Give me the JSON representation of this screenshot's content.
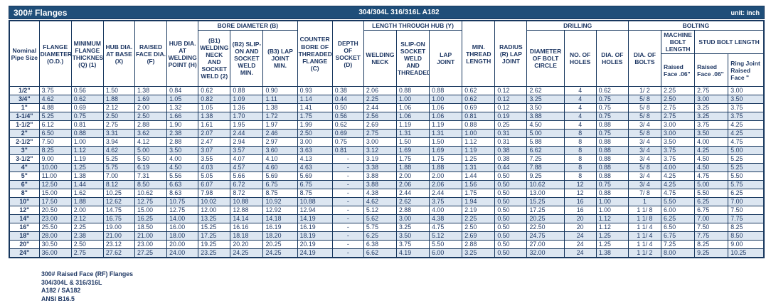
{
  "colors": {
    "title_bar_bg": "#1F4E79",
    "border": "#17375E",
    "alt_row_bg": "#DCE6F1",
    "text": "#1F3864"
  },
  "title_bar": {
    "title": "300# Flanges",
    "material": "304/304L 316/316L A182",
    "unit": "unit: inch"
  },
  "header": {
    "pipe_size": "Nominal Pipe Size",
    "flange_diameter": "FLANGE DIAMETER (O.D.)",
    "min_thickness": "MINIMUM FLANGE THICKNESS (Q) (1)",
    "hub_dia_base": "HUB DIA. AT BASE (X)",
    "raised_face_dia": "RAISED FACE DIA. (F)",
    "hub_dia_welding": "HUB DIA. AT WELDING POINT (H)",
    "bore_group": "BORE DIAMETER (B)",
    "b1": "(B1) WELDING NECK AND SOCKET WELD (2)",
    "b2": "(B2) SLIP-ON AND SOCKET WELD MIN.",
    "b3": "(B3) LAP JOINT MIN.",
    "counter_bore": "COUNTER BORE OF THREADED FLANGE (C)",
    "depth_socket": "DEPTH OF SOCKET (D)",
    "length_hub_group": "LENGTH THROUGH HUB (Y)",
    "welding_neck": "WELDING NECK",
    "slip_on": "SLIP-ON SOCKET WELD AND THREADED",
    "lap_joint": "LAP JOINT",
    "min_thread": "MIN. THREAD LENGTH",
    "radius": "RADIUS (R) LAP JOINT",
    "drilling_group": "DRILLING",
    "bolt_circle": "DIAMETER OF BOLT CIRCLE",
    "no_holes": "NO. OF HOLES",
    "dia_holes": "DIA. OF HOLES",
    "bolting_group": "BOLTING",
    "dia_bolts": "DIA. OF BOLTS",
    "machine_bolt": "MACHINE BOLT LENGTH",
    "stud_bolt": "STUD BOLT LENGTH",
    "machine_rf": "Raised Face .06\"",
    "stud_rf": "Raised Face .06\"",
    "stud_rj": "Ring Joint Raised Face \""
  },
  "rows": [
    [
      "1/2\"",
      "3.75",
      "0.56",
      "1.50",
      "1.38",
      "0.84",
      "0.62",
      "0.88",
      "0.90",
      "0.93",
      "0.38",
      "2.06",
      "0.88",
      "0.88",
      "0.62",
      "0.12",
      "2.62",
      "4",
      "0.62",
      "1/ 2",
      "2.25",
      "2.75",
      "3.00"
    ],
    [
      "3/4\"",
      "4.62",
      "0.62",
      "1.88",
      "1.69",
      "1.05",
      "0.82",
      "1.09",
      "1.11",
      "1.14",
      "0.44",
      "2.25",
      "1.00",
      "1.00",
      "0.62",
      "0.12",
      "3.25",
      "4",
      "0.75",
      "5/ 8",
      "2.50",
      "3.00",
      "3.50"
    ],
    [
      "1\"",
      "4.88",
      "0.69",
      "2.12",
      "2.00",
      "1.32",
      "1.05",
      "1.36",
      "1.38",
      "1.41",
      "0.50",
      "2.44",
      "1.06",
      "1.06",
      "0.69",
      "0.12",
      "3.50",
      "4",
      "0.75",
      "5/ 8",
      "2.75",
      "3.25",
      "3.75"
    ],
    [
      "1-1/4\"",
      "5.25",
      "0.75",
      "2.50",
      "2.50",
      "1.66",
      "1.38",
      "1.70",
      "1.72",
      "1.75",
      "0.56",
      "2.56",
      "1.06",
      "1.06",
      "0.81",
      "0.19",
      "3.88",
      "4",
      "0.75",
      "5/ 8",
      "2.75",
      "3.25",
      "3.75"
    ],
    [
      "1-1/2\"",
      "6.12",
      "0.81",
      "2.75",
      "2.88",
      "1.90",
      "1.61",
      "1.95",
      "1.97",
      "1.99",
      "0.62",
      "2.69",
      "1.19",
      "1.19",
      "0.88",
      "0.25",
      "4.50",
      "4",
      "0.88",
      "3/ 4",
      "3.00",
      "3.75",
      "4.25"
    ],
    [
      "2\"",
      "6.50",
      "0.88",
      "3.31",
      "3.62",
      "2.38",
      "2.07",
      "2.44",
      "2.46",
      "2.50",
      "0.69",
      "2.75",
      "1.31",
      "1.31",
      "1.00",
      "0.31",
      "5.00",
      "8",
      "0.75",
      "5/ 8",
      "3.00",
      "3.50",
      "4.25"
    ],
    [
      "2-1/2\"",
      "7.50",
      "1.00",
      "3.94",
      "4.12",
      "2.88",
      "2.47",
      "2.94",
      "2.97",
      "3.00",
      "0.75",
      "3.00",
      "1.50",
      "1.50",
      "1.12",
      "0.31",
      "5.88",
      "8",
      "0.88",
      "3/ 4",
      "3.50",
      "4.00",
      "4.75"
    ],
    [
      "3\"",
      "8.25",
      "1.12",
      "4.62",
      "5.00",
      "3.50",
      "3.07",
      "3.57",
      "3.60",
      "3.63",
      "0.81",
      "3.12",
      "1.69",
      "1.69",
      "1.19",
      "0.38",
      "6.62",
      "8",
      "0.88",
      "3/ 4",
      "3.75",
      "4.25",
      "5.00"
    ],
    [
      "3-1/2\"",
      "9.00",
      "1.19",
      "5.25",
      "5.50",
      "4.00",
      "3.55",
      "4.07",
      "4.10",
      "4.13",
      "-",
      "3.19",
      "1.75",
      "1.75",
      "1.25",
      "0.38",
      "7.25",
      "8",
      "0.88",
      "3/ 4",
      "3.75",
      "4.50",
      "5.25"
    ],
    [
      "4\"",
      "10.00",
      "1.25",
      "5.75",
      "6.19",
      "4.50",
      "4.03",
      "4.57",
      "4.60",
      "4.63",
      "-",
      "3.38",
      "1.88",
      "1.88",
      "1.31",
      "0.44",
      "7.88",
      "8",
      "0.88",
      "5/ 8",
      "4.00",
      "4.50",
      "5.25"
    ],
    [
      "5\"",
      "11.00",
      "1.38",
      "7.00",
      "7.31",
      "5.56",
      "5.05",
      "5.66",
      "5.69",
      "5.69",
      "-",
      "3.88",
      "2.00",
      "2.00",
      "1.44",
      "0.50",
      "9.25",
      "8",
      "0.88",
      "3/ 4",
      "4.25",
      "4.75",
      "5.50"
    ],
    [
      "6\"",
      "12.50",
      "1.44",
      "8.12",
      "8.50",
      "6.63",
      "6.07",
      "6.72",
      "6.75",
      "6.75",
      "-",
      "3.88",
      "2.06",
      "2.06",
      "1.56",
      "0.50",
      "10.62",
      "12",
      "0.75",
      "3/ 4",
      "4.25",
      "5.00",
      "5.75"
    ],
    [
      "8\"",
      "15.00",
      "1.62",
      "10.25",
      "10.62",
      "8.63",
      "7.98",
      "8.72",
      "8.75",
      "8.75",
      "-",
      "4.38",
      "2.44",
      "2.44",
      "1.75",
      "0.50",
      "13.00",
      "12",
      "0.88",
      "7/ 8",
      "4.75",
      "5.50",
      "6.25"
    ],
    [
      "10\"",
      "17.50",
      "1.88",
      "12.62",
      "12.75",
      "10.75",
      "10.02",
      "10.88",
      "10.92",
      "10.88",
      "-",
      "4.62",
      "2.62",
      "3.75",
      "1.94",
      "0.50",
      "15.25",
      "16",
      "1.00",
      "1",
      "5.50",
      "6.25",
      "7.00"
    ],
    [
      "12\"",
      "20.50",
      "2.00",
      "14.75",
      "15.00",
      "12.75",
      "12.00",
      "12.88",
      "12.92",
      "12.94",
      "-",
      "5.12",
      "2.88",
      "4.00",
      "2.19",
      "0.50",
      "17.25",
      "16",
      "1.00",
      "1 1/ 8",
      "6.00",
      "6.75",
      "7.50"
    ],
    [
      "14\"",
      "23.00",
      "2.12",
      "16.75",
      "16.25",
      "14.00",
      "13.25",
      "14.14",
      "14.18",
      "14.19",
      "-",
      "5.62",
      "3.00",
      "4.38",
      "2.25",
      "0.50",
      "20.25",
      "20",
      "1.12",
      "1 1/ 8",
      "6.25",
      "7.00",
      "7.75"
    ],
    [
      "16\"",
      "25.50",
      "2.25",
      "19.00",
      "18.50",
      "16.00",
      "15.25",
      "16.16",
      "16.19",
      "16.19",
      "-",
      "5.75",
      "3.25",
      "4.75",
      "2.50",
      "0.50",
      "22.50",
      "20",
      "1.12",
      "1 1/ 4",
      "6.50",
      "7.50",
      "8.25"
    ],
    [
      "18\"",
      "28.00",
      "2.38",
      "21.00",
      "21.00",
      "18.00",
      "17.25",
      "18.18",
      "18.20",
      "18.19",
      "-",
      "6.25",
      "3.50",
      "5.12",
      "2.69",
      "0.50",
      "24.75",
      "24",
      "1.25",
      "1 1/ 4",
      "6.75",
      "7.75",
      "8.50"
    ],
    [
      "20\"",
      "30.50",
      "2.50",
      "23.12",
      "23.00",
      "20.00",
      "19.25",
      "20.20",
      "20.25",
      "20.19",
      "-",
      "6.38",
      "3.75",
      "5.50",
      "2.88",
      "0.50",
      "27.00",
      "24",
      "1.25",
      "1 1/ 4",
      "7.25",
      "8.25",
      "9.00"
    ],
    [
      "24\"",
      "36.00",
      "2.75",
      "27.62",
      "27.25",
      "24.00",
      "23.25",
      "24.25",
      "24.25",
      "24.19",
      "-",
      "6.62",
      "4.19",
      "6.00",
      "3.25",
      "0.50",
      "32.00",
      "24",
      "1.38",
      "1 1/ 2",
      "8.00",
      "9.25",
      "10.25"
    ]
  ],
  "notes": [
    "300# Raised Face (RF) Flanges",
    "304/304L & 316/316L",
    "A182 / SA182",
    "ANSI B16.5"
  ]
}
